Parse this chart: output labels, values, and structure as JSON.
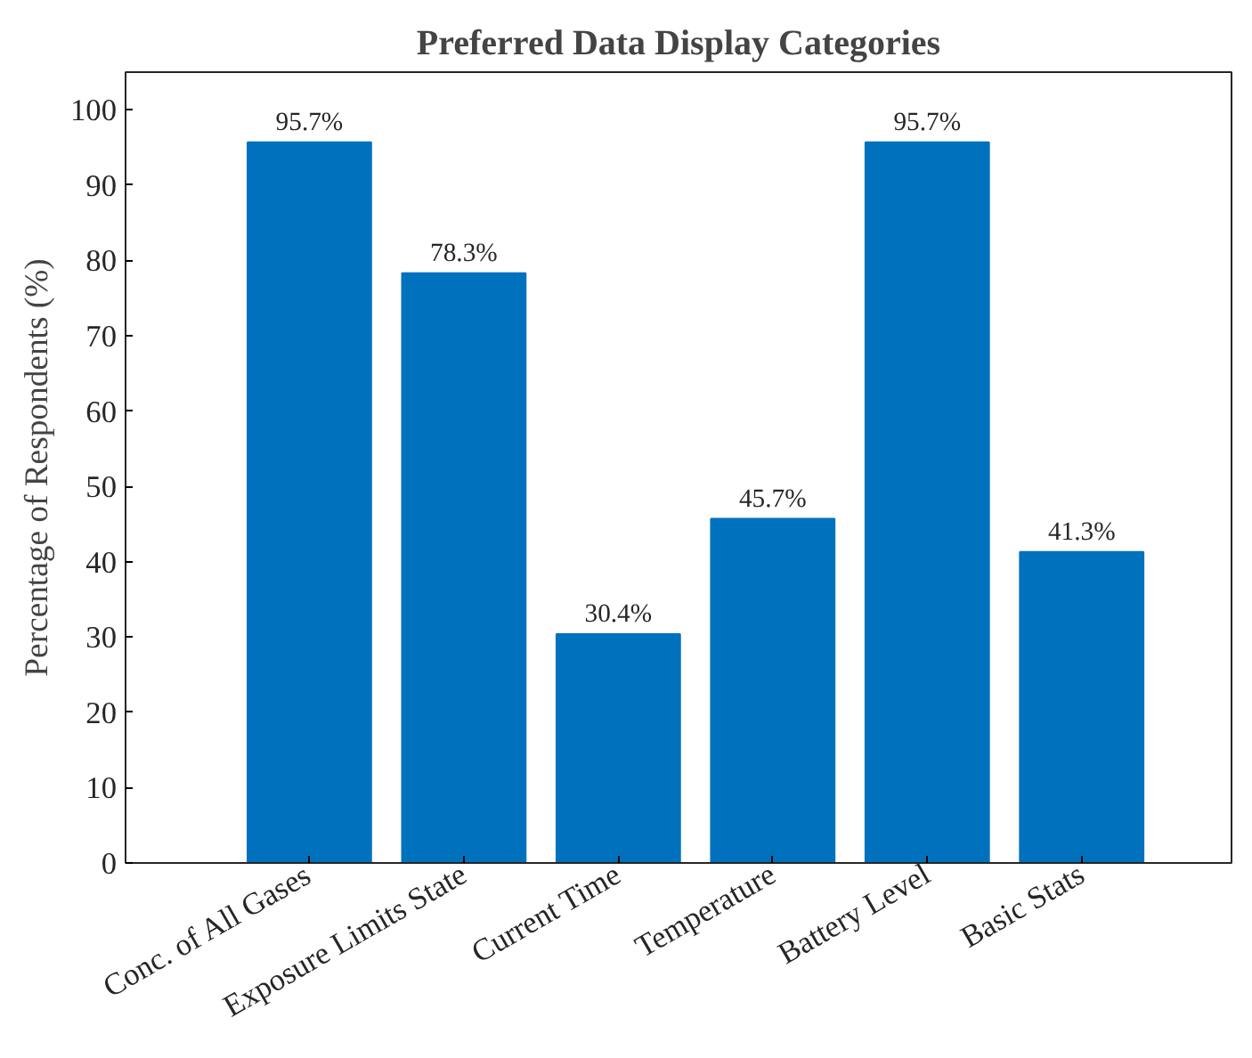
{
  "chart_data": {
    "type": "bar",
    "title": "Preferred Data Display Categories",
    "ylabel": "Percentage of Respondents (%)",
    "categories": [
      "Conc. of All Gases",
      "Exposure Limits State",
      "Current Time",
      "Temperature",
      "Battery Level",
      "Basic Stats"
    ],
    "values": [
      95.7,
      78.3,
      30.4,
      45.7,
      95.7,
      41.3
    ],
    "value_labels": [
      "95.7%",
      "78.3%",
      "30.4%",
      "45.7%",
      "95.7%",
      "41.3%"
    ],
    "color": "#0072bd",
    "ylim": [
      0,
      105
    ],
    "yticks": [
      0,
      10,
      20,
      30,
      40,
      50,
      60,
      70,
      80,
      90,
      100
    ],
    "grid": false
  }
}
